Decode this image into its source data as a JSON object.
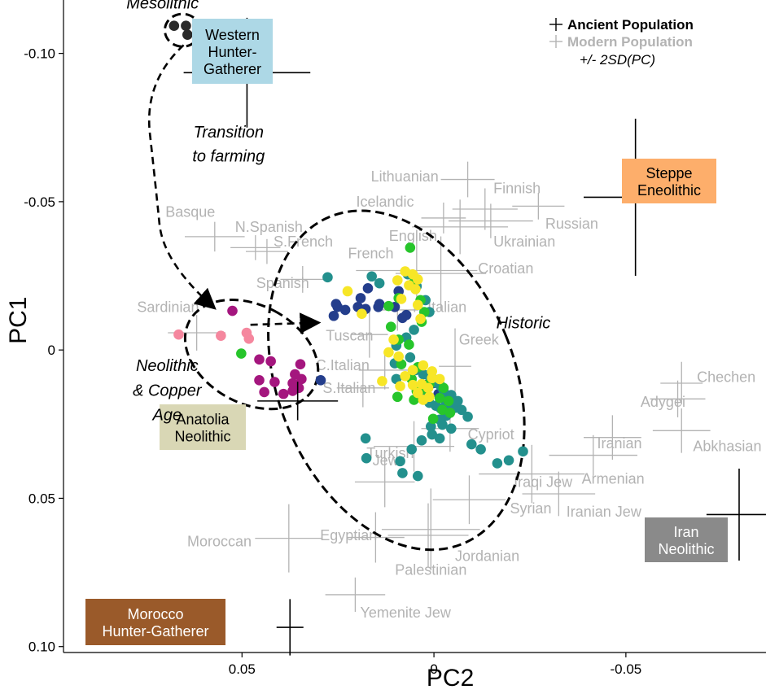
{
  "chart_data": {
    "type": "scatter",
    "title": "",
    "xlabel": "PC2",
    "ylabel": "PC1",
    "x_reversed": true,
    "y_reversed": true,
    "xlim": [
      0.0965,
      -0.0865
    ],
    "ylim": [
      -0.118,
      0.102
    ],
    "x_ticks": [
      0.05,
      0,
      -0.05
    ],
    "x_tick_labels": [
      "0.05",
      "0",
      "-0.05"
    ],
    "y_ticks": [
      -0.1,
      -0.05,
      0,
      0.05,
      0.1
    ],
    "y_tick_labels": [
      "-0.10",
      "-0.05",
      "0",
      "0.05",
      "0.10"
    ],
    "grid": false,
    "legend": {
      "position": "top-right",
      "ancient_label": "Ancient Population",
      "modern_label": "Modern Population",
      "error_label": "+/- 2SD(PC)"
    },
    "colors": {
      "ancient_cross": "#000000",
      "modern_cross": "#b3b3b3",
      "modern_text": "#b3b3b3",
      "mesolithic": "#2a2a2a",
      "pink": "#f5879e",
      "magenta": "#a4167e",
      "navy": "#243e8c",
      "teal": "#23908d",
      "green": "#27c52b",
      "yellow": "#f7e627",
      "box_whg": "#add8e6",
      "box_steppe": "#fdae6b",
      "box_anatolia": "#d9d7b5",
      "box_iran": "#8a8a8a",
      "box_morocco": "#9a5a2a"
    },
    "ancient_populations": [
      {
        "name": "Western Hunter-Gatherer",
        "lines": [
          "Western",
          "Hunter-",
          "Gatherer"
        ],
        "x": 0.0487,
        "y": -0.0935,
        "sx": 0.0165,
        "sy": 0.0185,
        "box_color": "#add8e6",
        "text_color": "#000000"
      },
      {
        "name": "Steppe Eneolithic",
        "lines": [
          "Steppe",
          "Eneolithic"
        ],
        "x": -0.0525,
        "y": -0.0515,
        "sx": 0.0135,
        "sy": 0.0265,
        "box_color": "#fdae6b",
        "text_color": "#000000"
      },
      {
        "name": "Anatolia Neolithic",
        "lines": [
          "Anatolia",
          "Neolithic"
        ],
        "x": 0.0355,
        "y": 0.0172,
        "sx": 0.0105,
        "sy": 0.0065,
        "box_color": "#d9d7b5",
        "text_color": "#000000"
      },
      {
        "name": "Iran Neolithic",
        "lines": [
          "Iran",
          "Neolithic"
        ],
        "x": -0.0795,
        "y": 0.0555,
        "sx": 0.0085,
        "sy": 0.0155,
        "box_color": "#8a8a8a",
        "text_color": "#ffffff"
      },
      {
        "name": "Morocco Hunter-Gatherer",
        "lines": [
          "Morocco",
          "Hunter-Gatherer"
        ],
        "x": 0.0375,
        "y": 0.0935,
        "sx": 0.0035,
        "sy": 0.0095,
        "box_color": "#9a5a2a",
        "text_color": "#ffffff"
      }
    ],
    "modern_populations": [
      {
        "name": "Lithuanian",
        "x": -0.0088,
        "y": -0.0575,
        "sx": 0.007,
        "sy": 0.006
      },
      {
        "name": "Finnish",
        "x": -0.0133,
        "y": -0.0475,
        "sx": 0.0085,
        "sy": 0.007
      },
      {
        "name": "Russian",
        "x": -0.0272,
        "y": -0.0485,
        "sx": 0.0068,
        "sy": 0.0045
      },
      {
        "name": "Icelandic",
        "x": -0.0025,
        "y": -0.0445,
        "sx": 0.0058,
        "sy": 0.0052
      },
      {
        "name": "English",
        "x": -0.0068,
        "y": -0.0415,
        "sx": 0.0125,
        "sy": 0.0092
      },
      {
        "name": "Ukrainian",
        "x": -0.0148,
        "y": -0.0435,
        "sx": 0.011,
        "sy": 0.0058
      },
      {
        "name": "Basque",
        "x": 0.0571,
        "y": -0.0382,
        "sx": 0.0078,
        "sy": 0.005
      },
      {
        "name": "N.Spanish",
        "x": 0.0465,
        "y": -0.0345,
        "sx": 0.0065,
        "sy": 0.0042
      },
      {
        "name": "S.French",
        "x": 0.0435,
        "y": -0.0332,
        "sx": 0.0055,
        "sy": 0.0042
      },
      {
        "name": "French",
        "x": 0.0045,
        "y": -0.0268,
        "sx": 0.0158,
        "sy": 0.0122
      },
      {
        "name": "Croatian",
        "x": -0.0018,
        "y": -0.0258,
        "sx": 0.0118,
        "sy": 0.0125
      },
      {
        "name": "Spanish",
        "x": 0.0342,
        "y": -0.0238,
        "sx": 0.0058,
        "sy": 0.0045
      },
      {
        "name": "Sardinian",
        "x": 0.0618,
        "y": -0.0058,
        "sx": 0.0075,
        "sy": 0.006
      },
      {
        "name": "N.Italian",
        "x": 0.0095,
        "y": -0.0135,
        "sx": 0.0055,
        "sy": 0.007
      },
      {
        "name": "Tuscan",
        "x": 0.0168,
        "y": -0.0052,
        "sx": 0.0048,
        "sy": 0.0078
      },
      {
        "name": "Greek",
        "x": -0.0055,
        "y": 0.0055,
        "sx": 0.0042,
        "sy": 0.0128
      },
      {
        "name": "C.Italian",
        "x": 0.0128,
        "y": 0.0068,
        "sx": 0.0068,
        "sy": 0.0065
      },
      {
        "name": "S.Italian",
        "x": 0.0185,
        "y": 0.0128,
        "sx": 0.0068,
        "sy": 0.0065
      },
      {
        "name": "Cypriot",
        "x": -0.0042,
        "y": 0.0265,
        "sx": 0.0075,
        "sy": 0.0078
      },
      {
        "name": "Turkish",
        "x": 0.0052,
        "y": 0.0325,
        "sx": 0.0105,
        "sy": 0.0085
      },
      {
        "name": "Jew",
        "x": 0.0128,
        "y": 0.0445,
        "sx": 0.0078,
        "sy": 0.0085
      },
      {
        "name": "Iraqi Jew",
        "x": -0.0255,
        "y": 0.0418,
        "sx": 0.0138,
        "sy": 0.0098
      },
      {
        "name": "Armenian",
        "x": -0.0415,
        "y": 0.0355,
        "sx": 0.0115,
        "sy": 0.0068
      },
      {
        "name": "Iranian",
        "x": -0.0465,
        "y": 0.0295,
        "sx": 0.0075,
        "sy": 0.0075
      },
      {
        "name": "Syrian",
        "x": -0.0092,
        "y": 0.0505,
        "sx": 0.0095,
        "sy": 0.0082
      },
      {
        "name": "Iranian Jew",
        "x": -0.0325,
        "y": 0.0485,
        "sx": 0.0095,
        "sy": 0.0075
      },
      {
        "name": "Egyptian",
        "x": 0.0152,
        "y": 0.0632,
        "sx": 0.0075,
        "sy": 0.0085
      },
      {
        "name": "Jordanian",
        "x": 0.0015,
        "y": 0.0625,
        "sx": 0.0105,
        "sy": 0.0108
      },
      {
        "name": "Palestinian",
        "x": 0.0008,
        "y": 0.0605,
        "sx": 0.0128,
        "sy": 0.0138
      },
      {
        "name": "Moroccan",
        "x": 0.0378,
        "y": 0.0635,
        "sx": 0.0088,
        "sy": 0.0115
      },
      {
        "name": "Yemenite Jew",
        "x": 0.0205,
        "y": 0.0825,
        "sx": 0.0078,
        "sy": 0.0058
      },
      {
        "name": "Chechen",
        "x": -0.0645,
        "y": 0.0112,
        "sx": 0.0055,
        "sy": 0.0072
      },
      {
        "name": "Adygei",
        "x": -0.0635,
        "y": 0.0165,
        "sx": 0.0072,
        "sy": 0.0062
      },
      {
        "name": "Abkhasian",
        "x": -0.0645,
        "y": 0.0272,
        "sx": 0.0075,
        "sy": 0.0075
      }
    ],
    "samples": [
      {
        "group": "Mesolithic",
        "color": "#2a2a2a",
        "points": [
          [
            0.0677,
            -0.1093
          ],
          [
            0.0646,
            -0.1093
          ],
          [
            0.0642,
            -0.1063
          ]
        ]
      },
      {
        "group": "pink",
        "color": "#f5879e",
        "points": [
          [
            0.0555,
            -0.0048
          ],
          [
            0.0488,
            -0.0058
          ],
          [
            0.0482,
            -0.0038
          ],
          [
            0.0665,
            -0.0052
          ]
        ]
      },
      {
        "group": "magenta",
        "color": "#a4167e",
        "points": [
          [
            0.0525,
            -0.0132
          ],
          [
            0.0455,
            0.0032
          ],
          [
            0.0425,
            0.0038
          ],
          [
            0.0348,
            0.0048
          ],
          [
            0.0455,
            0.0102
          ],
          [
            0.0415,
            0.0108
          ],
          [
            0.0362,
            0.0082
          ],
          [
            0.0368,
            0.0112
          ],
          [
            0.0345,
            0.0098
          ],
          [
            0.0392,
            0.0148
          ],
          [
            0.0368,
            0.0138
          ],
          [
            0.0352,
            0.0128
          ],
          [
            0.0442,
            0.0142
          ]
        ]
      },
      {
        "group": "green (neolithic)",
        "color": "#27c52b",
        "points": [
          [
            0.0502,
            0.0012
          ]
        ]
      },
      {
        "group": "navy",
        "color": "#243e8c",
        "points": [
          [
            0.0261,
            -0.0115
          ],
          [
            0.0251,
            -0.0145
          ],
          [
            0.0255,
            -0.0155
          ],
          [
            0.0198,
            -0.0145
          ],
          [
            0.0231,
            -0.0135
          ],
          [
            0.0191,
            -0.0175
          ],
          [
            0.0172,
            -0.0208
          ],
          [
            0.0178,
            -0.0138
          ],
          [
            0.0145,
            -0.0145
          ],
          [
            0.0142,
            -0.0155
          ],
          [
            0.0102,
            -0.0145
          ],
          [
            0.0092,
            -0.0198
          ],
          [
            0.0072,
            -0.0118
          ],
          [
            0.0082,
            -0.0108
          ],
          [
            0.0295,
            0.0102
          ],
          [
            0.0062,
            0.0088
          ],
          [
            0.0022,
            0.0118
          ],
          [
            0.0003,
            0.0112
          ],
          [
            -0.0012,
            0.0148
          ]
        ]
      },
      {
        "group": "teal",
        "color": "#23908d",
        "points": [
          [
            0.0277,
            -0.0245
          ],
          [
            0.0162,
            -0.0248
          ],
          [
            0.0142,
            -0.0225
          ],
          [
            0.0068,
            -0.0255
          ],
          [
            0.0045,
            -0.0215
          ],
          [
            0.0022,
            -0.0168
          ],
          [
            0.0012,
            -0.0128
          ],
          [
            0.0098,
            -0.0015
          ],
          [
            0.0072,
            -0.0042
          ],
          [
            0.0052,
            -0.0068
          ],
          [
            0.0062,
            0.0025
          ],
          [
            0.0048,
            0.0068
          ],
          [
            0.0028,
            0.0082
          ],
          [
            0.0015,
            0.0085
          ],
          [
            0.0002,
            0.0098
          ],
          [
            -0.0008,
            0.0112
          ],
          [
            -0.0018,
            0.0122
          ],
          [
            -0.0025,
            0.0138
          ],
          [
            -0.0028,
            0.0168
          ],
          [
            -0.0045,
            0.0152
          ],
          [
            0.0022,
            0.0162
          ],
          [
            0.0012,
            0.0178
          ],
          [
            -0.0005,
            0.0188
          ],
          [
            -0.0018,
            0.0198
          ],
          [
            -0.0035,
            0.0185
          ],
          [
            -0.0055,
            0.0195
          ],
          [
            -0.0062,
            0.0172
          ],
          [
            -0.0072,
            0.0202
          ],
          [
            -0.0088,
            0.0225
          ],
          [
            -0.0032,
            0.0222
          ],
          [
            -0.0015,
            0.0235
          ],
          [
            -0.0022,
            0.0252
          ],
          [
            -0.0045,
            0.0265
          ],
          [
            0.0005,
            0.0285
          ],
          [
            0.0032,
            0.0305
          ],
          [
            0.0058,
            0.0335
          ],
          [
            0.0088,
            0.0375
          ],
          [
            0.0082,
            0.0415
          ],
          [
            0.0042,
            0.0425
          ],
          [
            -0.0098,
            0.0318
          ],
          [
            -0.0122,
            0.0335
          ],
          [
            -0.0165,
            0.0382
          ],
          [
            -0.0195,
            0.0372
          ],
          [
            -0.0232,
            0.0342
          ],
          [
            0.0176,
            0.0365
          ],
          [
            0.0178,
            0.0298
          ],
          [
            0.0098,
            0.0098
          ],
          [
            0.0102,
            0.0045
          ],
          [
            -0.0015,
            0.0298
          ],
          [
            0.0008,
            0.0258
          ]
        ]
      },
      {
        "group": "green",
        "color": "#27c52b",
        "points": [
          [
            0.0118,
            -0.0148
          ],
          [
            0.0092,
            -0.0175
          ],
          [
            0.0062,
            -0.0345
          ],
          [
            0.0035,
            -0.0168
          ],
          [
            0.0052,
            -0.0228
          ],
          [
            0.0025,
            -0.0128
          ],
          [
            0.0032,
            -0.0095
          ],
          [
            0.0112,
            -0.0078
          ],
          [
            0.0092,
            -0.0035
          ],
          [
            0.0065,
            -0.0018
          ],
          [
            0.0085,
            0.0048
          ],
          [
            0.0012,
            0.0115
          ],
          [
            0.0028,
            0.0132
          ],
          [
            0.0052,
            0.0168
          ],
          [
            0.0045,
            0.0138
          ],
          [
            -0.0015,
            0.0162
          ],
          [
            -0.0038,
            0.0172
          ],
          [
            -0.0022,
            0.0202
          ],
          [
            -0.0042,
            0.0212
          ],
          [
            0.0002,
            0.0232
          ],
          [
            -0.0025,
            0.0128
          ],
          [
            0.0042,
            0.0058
          ],
          [
            0.0058,
            0.0098
          ],
          [
            0.0095,
            0.0158
          ]
        ]
      },
      {
        "group": "yellow",
        "color": "#f7e627",
        "points": [
          [
            0.0225,
            -0.0198
          ],
          [
            0.0188,
            -0.0122
          ],
          [
            0.0075,
            -0.0265
          ],
          [
            0.0055,
            -0.0255
          ],
          [
            0.0042,
            -0.0238
          ],
          [
            0.0065,
            -0.0218
          ],
          [
            0.0048,
            -0.0205
          ],
          [
            0.0095,
            -0.0235
          ],
          [
            0.0085,
            -0.0172
          ],
          [
            0.0042,
            -0.0152
          ],
          [
            0.0035,
            -0.0105
          ],
          [
            0.0118,
            0.0008
          ],
          [
            0.0105,
            -0.0035
          ],
          [
            0.0092,
            0.0022
          ],
          [
            0.0028,
            0.0052
          ],
          [
            0.0005,
            0.0072
          ],
          [
            0.0005,
            0.0095
          ],
          [
            0.0088,
            0.0122
          ],
          [
            0.0055,
            0.0118
          ],
          [
            0.0032,
            0.0115
          ],
          [
            0.0015,
            0.0128
          ],
          [
            0.0055,
            0.0068
          ],
          [
            -0.0015,
            0.0098
          ],
          [
            0.0042,
            0.0145
          ],
          [
            0.0135,
            0.0105
          ],
          [
            0.0012,
            0.0158
          ],
          [
            0.0028,
            0.0168
          ],
          [
            0.0075,
            0.0088
          ]
        ]
      }
    ],
    "ellipses": [
      {
        "name": "Mesolithic",
        "cx": 0.0655,
        "cy": -0.1078,
        "rx": 0.0046,
        "ry": 0.0055,
        "rot": 0
      },
      {
        "name": "Neolithic & Copper Age",
        "cx": 0.0475,
        "cy": 0.0015,
        "rx": 0.0128,
        "ry": 0.0238,
        "rot": -62
      },
      {
        "name": "Historic",
        "cx": 0.0098,
        "cy": 0.0102,
        "rx": 0.0308,
        "ry": 0.0595,
        "rot": -22
      }
    ],
    "annotations": [
      {
        "text": "Mesolithic",
        "x": 0.0707,
        "y": -0.117,
        "anchor": "middle"
      },
      {
        "text": "Transition",
        "x": 0.0535,
        "y": -0.0735,
        "anchor": "middle"
      },
      {
        "text": "to farming",
        "x": 0.0535,
        "y": -0.0655,
        "anchor": "middle"
      },
      {
        "text": "Neolithic",
        "x": 0.0695,
        "y": 0.0052,
        "anchor": "middle"
      },
      {
        "text": "& Copper",
        "x": 0.0695,
        "y": 0.0135,
        "anchor": "middle"
      },
      {
        "text": "Age",
        "x": 0.0695,
        "y": 0.0218,
        "anchor": "middle"
      },
      {
        "text": "Historic",
        "x": -0.0233,
        "y": -0.0092,
        "anchor": "middle"
      }
    ],
    "arrows": [
      {
        "name": "mesolithic-to-neolithic",
        "d": [
          [
            0.0652,
            -0.1028
          ],
          [
            0.0755,
            -0.0905
          ],
          [
            0.0725,
            -0.0555
          ],
          [
            0.0705,
            -0.0295
          ],
          [
            0.0575,
            -0.0145
          ]
        ]
      },
      {
        "name": "neolithic-to-historic",
        "d": [
          [
            0.0478,
            -0.0085
          ],
          [
            0.0305,
            -0.0092
          ]
        ]
      }
    ]
  }
}
